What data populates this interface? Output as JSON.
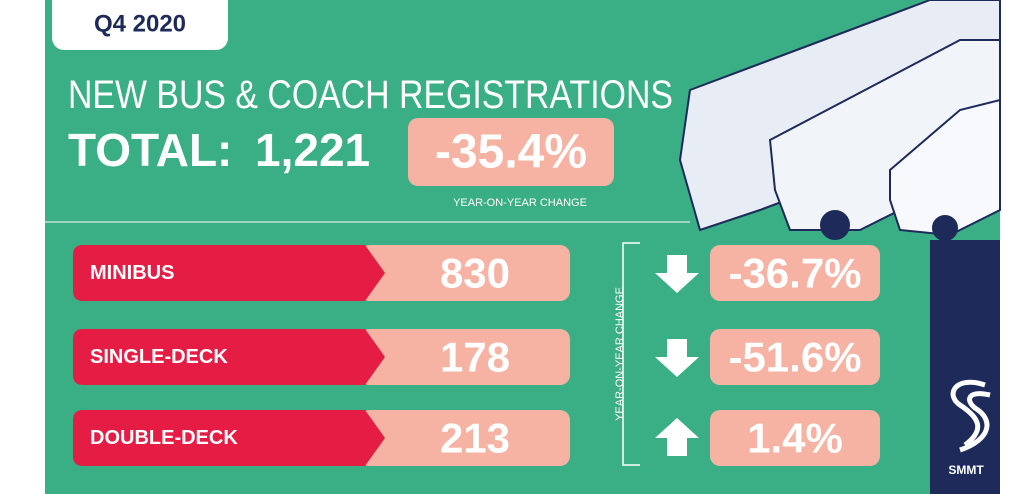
{
  "period": "Q4 2020",
  "title": "NEW BUS & COACH REGISTRATIONS",
  "total_label": "TOTAL:",
  "total": "1,221",
  "total_change": "-35.4%",
  "total_change_caption": "YEAR-ON-YEAR CHANGE",
  "rows_caption": "YEAR-ON-YEAR CHANGE",
  "rows": [
    {
      "label": "MINIBUS",
      "value": "830",
      "change": "-36.7%",
      "direction": "down"
    },
    {
      "label": "SINGLE-DECK",
      "value": "178",
      "change": "-51.6%",
      "direction": "down"
    },
    {
      "label": "DOUBLE-DECK",
      "value": "213",
      "change": "1.4%",
      "direction": "up"
    }
  ],
  "logo": "SMMT"
}
